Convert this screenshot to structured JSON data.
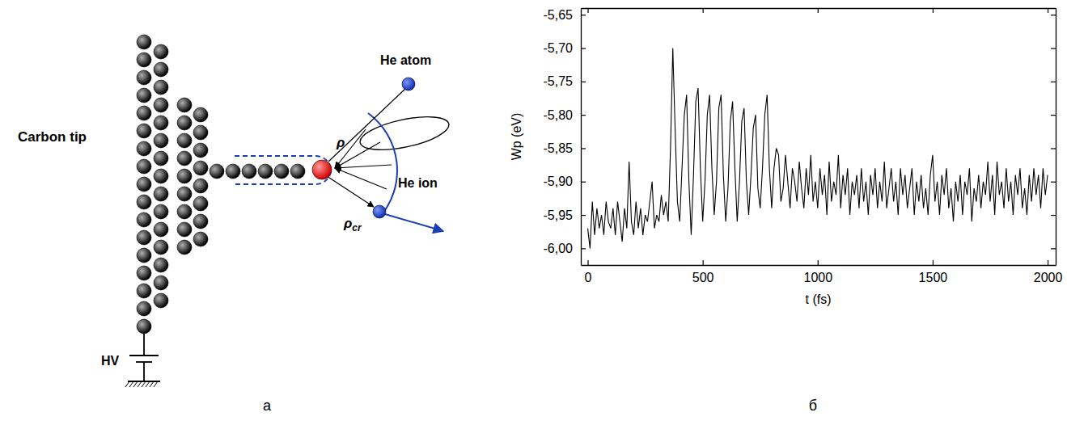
{
  "panels": {
    "a": "а",
    "b": "б"
  },
  "diagram": {
    "carbon_tip": "Carbon tip",
    "he_atom": "He atom",
    "he_ion": "He ion",
    "rho": "ρ",
    "rho_cr": "ρcr",
    "hv": "HV"
  },
  "chart_data": {
    "type": "line",
    "x_label": "t (fs)",
    "y_label": "Wp (eV)",
    "color": "#000000",
    "line_style": "solid",
    "grid": false,
    "xlim": [
      -30,
      2035
    ],
    "xticks": [
      0,
      500,
      1000,
      1500,
      2000
    ],
    "ylim": [
      -6.025,
      -5.64
    ],
    "yticks": [
      {
        "value": -6.0,
        "label": "-6,00"
      },
      {
        "value": -5.95,
        "label": "-5,95"
      },
      {
        "value": -5.9,
        "label": "-5,90"
      },
      {
        "value": -5.85,
        "label": "-5,85"
      },
      {
        "value": -5.8,
        "label": "-5,80"
      },
      {
        "value": -5.75,
        "label": "-5,75"
      },
      {
        "value": -5.7,
        "label": "-5,70"
      },
      {
        "value": -5.65,
        "label": "-5,65"
      }
    ],
    "x": [
      0,
      10,
      20,
      30,
      40,
      50,
      60,
      70,
      80,
      90,
      100,
      110,
      120,
      130,
      140,
      150,
      160,
      170,
      180,
      190,
      200,
      210,
      220,
      230,
      240,
      250,
      260,
      270,
      280,
      290,
      300,
      310,
      320,
      330,
      340,
      350,
      360,
      370,
      380,
      390,
      400,
      410,
      420,
      430,
      440,
      450,
      460,
      470,
      480,
      490,
      500,
      510,
      520,
      530,
      540,
      550,
      560,
      570,
      580,
      590,
      600,
      610,
      620,
      630,
      640,
      650,
      660,
      670,
      680,
      690,
      700,
      710,
      720,
      730,
      740,
      750,
      760,
      770,
      780,
      790,
      800,
      810,
      820,
      830,
      840,
      850,
      860,
      870,
      880,
      890,
      900,
      910,
      920,
      930,
      940,
      950,
      960,
      970,
      980,
      990,
      1000,
      1010,
      1020,
      1030,
      1040,
      1050,
      1060,
      1070,
      1080,
      1090,
      1100,
      1110,
      1120,
      1130,
      1140,
      1150,
      1160,
      1170,
      1180,
      1190,
      1200,
      1210,
      1220,
      1230,
      1240,
      1250,
      1260,
      1270,
      1280,
      1290,
      1300,
      1310,
      1320,
      1330,
      1340,
      1350,
      1360,
      1370,
      1380,
      1390,
      1400,
      1410,
      1420,
      1430,
      1440,
      1450,
      1460,
      1470,
      1480,
      1490,
      1500,
      1510,
      1520,
      1530,
      1540,
      1550,
      1560,
      1570,
      1580,
      1590,
      1600,
      1610,
      1620,
      1630,
      1640,
      1650,
      1660,
      1670,
      1680,
      1690,
      1700,
      1710,
      1720,
      1730,
      1740,
      1750,
      1760,
      1770,
      1780,
      1790,
      1800,
      1810,
      1820,
      1830,
      1840,
      1850,
      1860,
      1870,
      1880,
      1890,
      1900,
      1910,
      1920,
      1930,
      1940,
      1950,
      1960,
      1970,
      1980,
      1990,
      2000
    ],
    "values": [
      -5.97,
      -6.0,
      -5.93,
      -5.98,
      -5.94,
      -5.97,
      -5.95,
      -5.98,
      -5.93,
      -5.96,
      -5.97,
      -5.94,
      -5.98,
      -5.93,
      -5.96,
      -5.99,
      -5.94,
      -5.97,
      -5.87,
      -5.96,
      -5.98,
      -5.93,
      -5.97,
      -5.94,
      -5.98,
      -5.95,
      -5.96,
      -5.93,
      -5.9,
      -5.97,
      -5.95,
      -5.96,
      -5.92,
      -5.95,
      -5.93,
      -5.96,
      -5.85,
      -5.7,
      -5.82,
      -5.93,
      -5.96,
      -5.88,
      -5.8,
      -5.77,
      -5.9,
      -5.98,
      -5.89,
      -5.78,
      -5.76,
      -5.88,
      -5.96,
      -5.9,
      -5.8,
      -5.77,
      -5.88,
      -5.95,
      -5.9,
      -5.79,
      -5.77,
      -5.89,
      -5.96,
      -5.91,
      -5.81,
      -5.78,
      -5.88,
      -5.96,
      -5.9,
      -5.81,
      -5.79,
      -5.9,
      -5.95,
      -5.89,
      -5.82,
      -5.8,
      -5.91,
      -5.94,
      -5.88,
      -5.8,
      -5.77,
      -5.88,
      -5.94,
      -5.88,
      -5.85,
      -5.86,
      -5.93,
      -5.91,
      -5.86,
      -5.9,
      -5.94,
      -5.88,
      -5.9,
      -5.93,
      -5.87,
      -5.91,
      -5.94,
      -5.88,
      -5.92,
      -5.86,
      -5.93,
      -5.9,
      -5.94,
      -5.88,
      -5.92,
      -5.89,
      -5.95,
      -5.87,
      -5.93,
      -5.9,
      -5.92,
      -5.86,
      -5.94,
      -5.89,
      -5.92,
      -5.88,
      -5.95,
      -5.9,
      -5.92,
      -5.89,
      -5.94,
      -5.88,
      -5.93,
      -5.9,
      -5.95,
      -5.89,
      -5.92,
      -5.88,
      -5.94,
      -5.9,
      -5.93,
      -5.87,
      -5.94,
      -5.91,
      -5.88,
      -5.93,
      -5.9,
      -5.95,
      -5.88,
      -5.92,
      -5.89,
      -5.94,
      -5.91,
      -5.88,
      -5.95,
      -5.9,
      -5.93,
      -5.89,
      -5.94,
      -5.91,
      -5.95,
      -5.89,
      -5.86,
      -5.93,
      -5.9,
      -5.95,
      -5.89,
      -5.92,
      -5.88,
      -5.94,
      -5.91,
      -5.96,
      -5.9,
      -5.93,
      -5.89,
      -5.95,
      -5.9,
      -5.92,
      -5.88,
      -5.96,
      -5.91,
      -5.93,
      -5.89,
      -5.94,
      -5.9,
      -5.92,
      -5.87,
      -5.93,
      -5.89,
      -5.95,
      -5.87,
      -5.92,
      -5.9,
      -5.94,
      -5.88,
      -5.93,
      -5.9,
      -5.95,
      -5.89,
      -5.92,
      -5.88,
      -5.94,
      -5.91,
      -5.95,
      -5.89,
      -5.93,
      -5.88,
      -5.92,
      -5.89,
      -5.94,
      -5.88,
      -5.92,
      -5.89
    ]
  }
}
